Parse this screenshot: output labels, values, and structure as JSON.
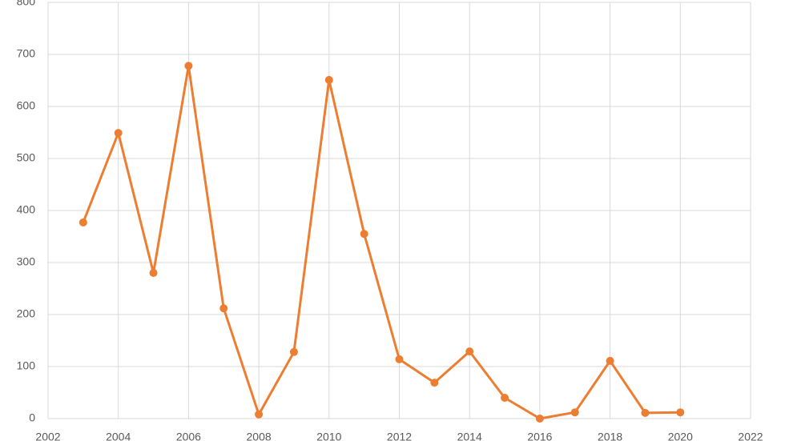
{
  "chart_data": {
    "type": "line",
    "x": [
      2003,
      2004,
      2005,
      2006,
      2007,
      2008,
      2009,
      2010,
      2011,
      2012,
      2013,
      2014,
      2015,
      2016,
      2017,
      2018,
      2019,
      2020
    ],
    "values": [
      377,
      549,
      280,
      678,
      212,
      8,
      128,
      651,
      355,
      114,
      69,
      129,
      40,
      0,
      12,
      111,
      11,
      12
    ],
    "color": "#ed7d31",
    "xlim": [
      2002,
      2022
    ],
    "xticks": [
      2002,
      2004,
      2006,
      2008,
      2010,
      2012,
      2014,
      2016,
      2018,
      2020,
      2022
    ],
    "ylim": [
      0,
      800
    ],
    "yticks": [
      0,
      100,
      200,
      300,
      400,
      500,
      600,
      700,
      800
    ],
    "grid": true
  }
}
